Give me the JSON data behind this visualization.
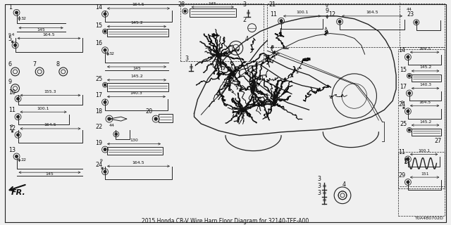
{
  "title": "2015 Honda CR-V Wire Harn Floor Diagram for 32140-TFE-A00",
  "bg_color": "#f0f0f0",
  "line_color": "#222222",
  "text_color": "#111111",
  "diagram_code": "T0A4B0702D"
}
